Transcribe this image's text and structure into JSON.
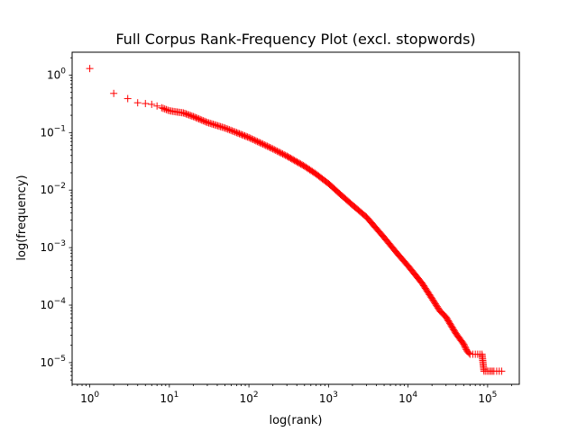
{
  "chart_data": {
    "type": "scatter",
    "title": "Full Corpus Rank-Frequency Plot (excl. stopwords)",
    "xlabel": "log(rank)",
    "ylabel": "log(frequency)",
    "xscale": "log",
    "yscale": "log",
    "xlim": [
      0.6,
      250000
    ],
    "ylim": [
      4.2e-06,
      2.5
    ],
    "grid": false,
    "marker": "+",
    "marker_color": "#ff0000",
    "x_ticks": [
      {
        "value": 1,
        "base": "10",
        "exp": "0"
      },
      {
        "value": 10,
        "base": "10",
        "exp": "1"
      },
      {
        "value": 100,
        "base": "10",
        "exp": "2"
      },
      {
        "value": 1000,
        "base": "10",
        "exp": "3"
      },
      {
        "value": 10000,
        "base": "10",
        "exp": "4"
      },
      {
        "value": 100000,
        "base": "10",
        "exp": "5"
      }
    ],
    "y_ticks": [
      {
        "value": 1,
        "base": "10",
        "exp": "0"
      },
      {
        "value": 0.1,
        "base": "10",
        "exp": "−1"
      },
      {
        "value": 0.01,
        "base": "10",
        "exp": "−2"
      },
      {
        "value": 0.001,
        "base": "10",
        "exp": "−3"
      },
      {
        "value": 0.0001,
        "base": "10",
        "exp": "−4"
      },
      {
        "value": 1e-05,
        "base": "10",
        "exp": "−5"
      }
    ],
    "series": [
      {
        "x": [
          1,
          2,
          3,
          4,
          5,
          6,
          7,
          8,
          10,
          12,
          15,
          20,
          30,
          50,
          70,
          100,
          150,
          200,
          300,
          500,
          700,
          1000,
          1500,
          2000,
          3000,
          5000,
          7000,
          10000,
          15000,
          20000,
          25000,
          30000,
          40000,
          50000,
          55000,
          60000,
          65000,
          70000,
          75000,
          80000,
          85000,
          90000,
          100000,
          110000,
          120000,
          130000,
          140000,
          150000
        ],
        "y": [
          1.3,
          0.48,
          0.39,
          0.33,
          0.32,
          0.31,
          0.29,
          0.27,
          0.24,
          0.23,
          0.22,
          0.19,
          0.15,
          0.12,
          0.1,
          0.082,
          0.063,
          0.052,
          0.039,
          0.026,
          0.019,
          0.013,
          0.0078,
          0.0055,
          0.0034,
          0.0015,
          0.00085,
          0.00048,
          0.00024,
          0.00013,
          8e-05,
          6.2e-05,
          3.2e-05,
          2.1e-05,
          1.6e-05,
          1.4e-05,
          1.4e-05,
          1.4e-05,
          1.4e-05,
          1.4e-05,
          1.4e-05,
          7.1e-06,
          7.1e-06,
          7.1e-06,
          7.1e-06,
          7.1e-06,
          7.1e-06,
          7.1e-06
        ]
      }
    ]
  }
}
